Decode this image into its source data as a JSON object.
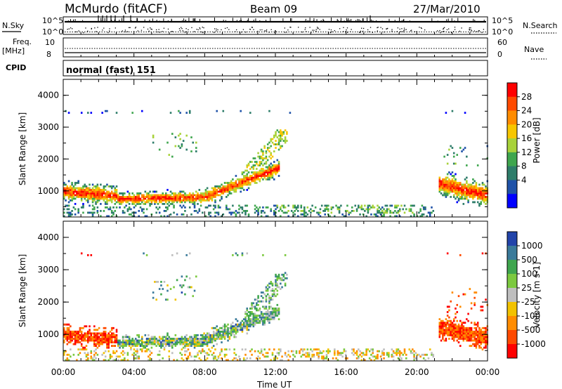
{
  "header": {
    "station": "McMurdo (fitACF)",
    "beam": "Beam 09",
    "date": "27/Mar/2010"
  },
  "panels": {
    "nsky": {
      "left_label": "N.Sky",
      "right_label": "N.Search",
      "tick_top": "10^5",
      "tick_bottom": "10^0"
    },
    "freq": {
      "left_label_1": "Freq.",
      "left_label_2": "[MHz]",
      "right_label": "Nave",
      "left_ticks": [
        "10",
        "8"
      ],
      "right_ticks": [
        "60",
        "0"
      ]
    },
    "cpid": {
      "label": "CPID",
      "value": "normal (fast) 151"
    }
  },
  "chart_data": [
    {
      "type": "heatmap",
      "quantity": "Power",
      "ylabel": "Slant Range [km]",
      "xlabel": "Time UT",
      "colorbar_label": "Power [dB]",
      "colorbar_ticks": [
        "28",
        "24",
        "20",
        "16",
        "12",
        "8",
        "4"
      ],
      "colorbar_colors": [
        "#ff0000",
        "#ff4a00",
        "#ff8c00",
        "#f7c600",
        "#a8d23a",
        "#3fa64e",
        "#2e7d6a",
        "#1f52a8",
        "#0000ff"
      ],
      "y_ticks": [
        "4000",
        "3000",
        "2000",
        "1000"
      ],
      "x_ticks": [
        "00:00",
        "04:00",
        "08:00",
        "12:00",
        "16:00",
        "20:00",
        "00:00"
      ],
      "ylim": [
        180,
        4500
      ],
      "xlim_hours": [
        0,
        24
      ]
    },
    {
      "type": "heatmap",
      "quantity": "Velocity",
      "ylabel": "Slant Range [km]",
      "xlabel": "Time UT",
      "colorbar_label": "Velocity [m s-1]",
      "colorbar_ticks": [
        "1000",
        "500",
        "100",
        "25",
        "-25",
        "-100",
        "-500",
        "-1000"
      ],
      "colorbar_colors": [
        "#2244aa",
        "#3a7a9a",
        "#3fa64e",
        "#7cc93f",
        "#bfbfbf",
        "#f2c200",
        "#ff8c00",
        "#ff4a00",
        "#ff0000"
      ],
      "y_ticks": [
        "4000",
        "3000",
        "2000",
        "1000"
      ],
      "x_ticks": [
        "00:00",
        "04:00",
        "08:00",
        "12:00",
        "16:00",
        "20:00",
        "00:00"
      ],
      "ylim": [
        180,
        4500
      ],
      "xlim_hours": [
        0,
        24
      ]
    }
  ]
}
